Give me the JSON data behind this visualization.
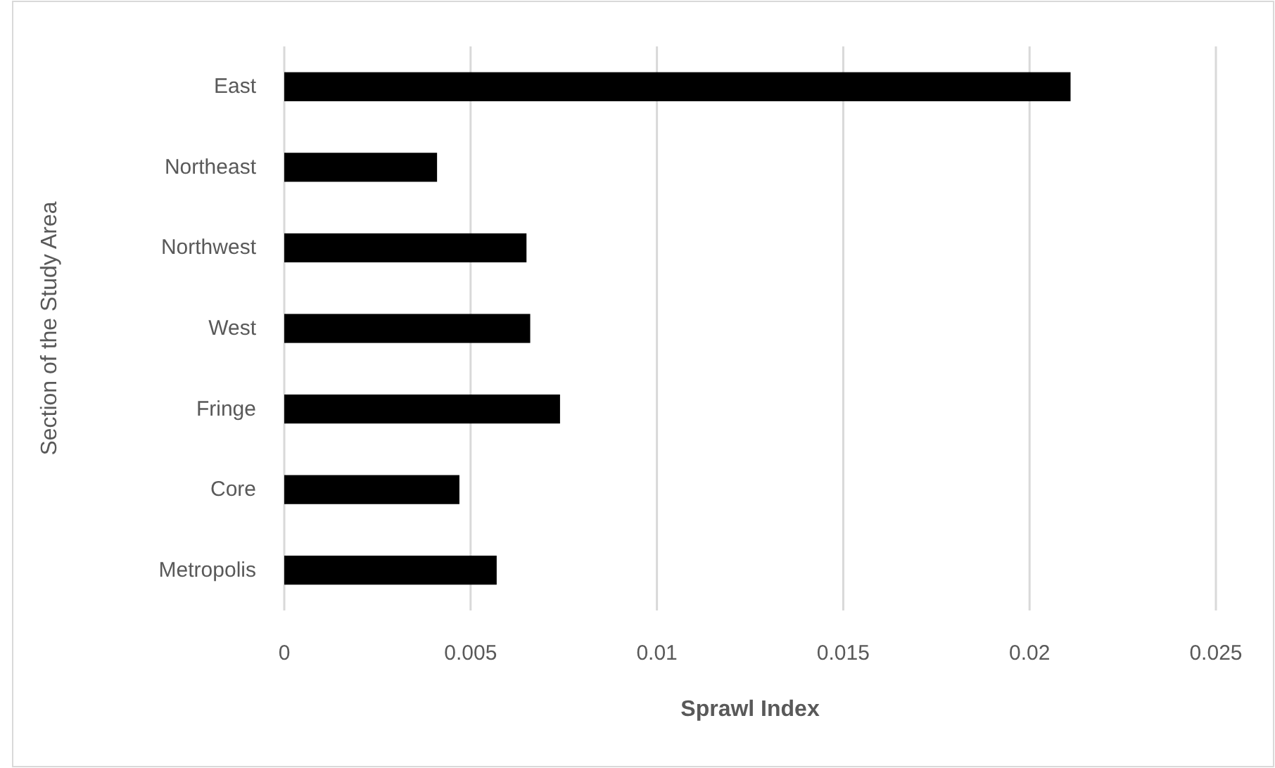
{
  "chart_data": {
    "type": "bar",
    "orientation": "horizontal",
    "xlabel": "Sprawl Index",
    "ylabel": "Section of the Study Area",
    "categories": [
      "East",
      "Northeast",
      "Northwest",
      "West",
      "Fringe",
      "Core",
      "Metropolis"
    ],
    "values": [
      0.0211,
      0.0041,
      0.0065,
      0.0066,
      0.0074,
      0.0047,
      0.0057
    ],
    "color": "#000000",
    "xlim": [
      0,
      0.025
    ],
    "xticks": [
      0,
      0.005,
      0.01,
      0.015,
      0.02,
      0.025
    ],
    "grid": "x"
  }
}
